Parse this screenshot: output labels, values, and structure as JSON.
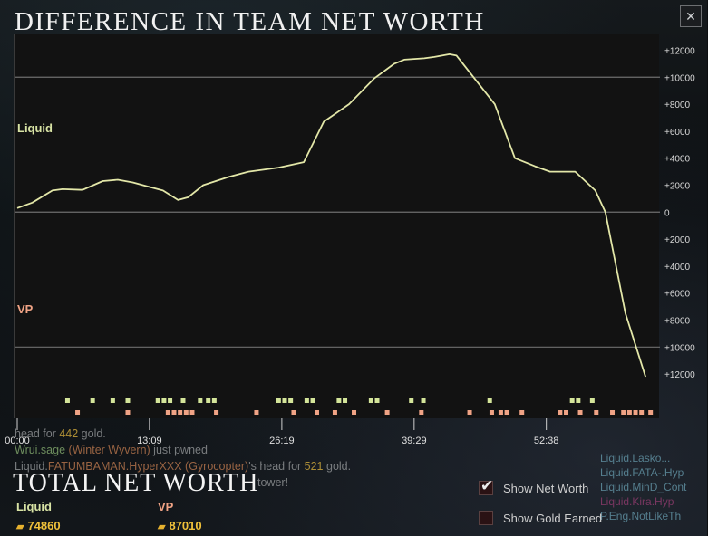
{
  "header": {
    "title": "DIFFERENCE IN TEAM NET WORTH",
    "close_icon": "close-icon"
  },
  "chart_data": {
    "type": "line",
    "title": "DIFFERENCE IN TEAM NET WORTH",
    "series": [
      {
        "name": "Liquid",
        "color": "#e3e7a8",
        "points": [
          [
            0.0,
            300
          ],
          [
            1.5,
            700
          ],
          [
            3.5,
            1600
          ],
          [
            4.5,
            1700
          ],
          [
            6.5,
            1650
          ],
          [
            8.5,
            2300
          ],
          [
            10,
            2400
          ],
          [
            11.5,
            2200
          ],
          [
            13,
            1900
          ],
          [
            14.5,
            1600
          ],
          [
            16,
            900
          ],
          [
            17,
            1100
          ],
          [
            18.5,
            2000
          ],
          [
            21,
            2600
          ],
          [
            23,
            3000
          ],
          [
            26,
            3300
          ],
          [
            28.5,
            3700
          ],
          [
            30.5,
            6700
          ],
          [
            33,
            8000
          ],
          [
            35.5,
            9900
          ],
          [
            37.5,
            11000
          ],
          [
            38.5,
            11300
          ],
          [
            40.5,
            11400
          ],
          [
            41.5,
            11500
          ],
          [
            43,
            11700
          ],
          [
            43.7,
            11600
          ],
          [
            47.5,
            8000
          ],
          [
            49.5,
            4000
          ],
          [
            51.5,
            3400
          ],
          [
            53,
            3000
          ],
          [
            55.5,
            3000
          ],
          [
            57.5,
            1600
          ],
          [
            58.5,
            0
          ],
          [
            60.5,
            -7500
          ],
          [
            62.5,
            -12200
          ]
        ]
      }
    ],
    "y_range": [
      -13000,
      12500
    ],
    "x_range": [
      0,
      63.3
    ],
    "y_ticks": [
      "+12000",
      "+10000",
      "+8000",
      "+6000",
      "+4000",
      "+2000",
      "0",
      "+2000",
      "+4000",
      "+6000",
      "+8000",
      "+10000",
      "+12000"
    ],
    "x_ticks": [
      "00:00",
      "13:09",
      "26:19",
      "39:29",
      "52:38"
    ],
    "gridlines": [
      10000,
      0,
      -10000
    ],
    "team_labels": {
      "top": "Liquid",
      "bottom": "VP"
    },
    "event_markers": {
      "liquid": [
        5,
        7.5,
        9.5,
        11,
        14,
        14.6,
        15.2,
        16.5,
        18.2,
        19,
        19.6,
        26,
        26.6,
        27.2,
        28.8,
        29.4,
        32,
        32.6,
        35.2,
        35.8,
        39.2,
        40.4,
        47,
        55.2,
        55.8,
        57.2
      ],
      "vp": [
        6,
        11,
        15,
        15.6,
        16.2,
        16.8,
        17.4,
        19.8,
        23.8,
        27.5,
        29.8,
        31.6,
        33.5,
        36.8,
        40.2,
        45,
        47.2,
        48.1,
        48.7,
        50.2,
        54,
        54.6,
        56,
        57.6,
        59.2,
        60.3,
        60.9,
        61.5,
        62.1,
        63
      ]
    }
  },
  "events_text": {
    "line1_a": "head for ",
    "line1_gold": "442",
    "line1_b": " gold.",
    "line2_name": "Wrui.sage",
    "line2_hero": "(Winter Wyvern)",
    "line2_rest": " just pwned",
    "line3_name": "Liquid.",
    "line3_mid": "FATUMBAMAN.HyperXXX",
    "line3_hero": "(Gyrocopter)",
    "line3_rest": "'s head for ",
    "line3_gold": "521",
    "line3_end": " gold.",
    "line4": "tower!"
  },
  "side_feed": {
    "items": [
      "Liquid.Lasko...",
      "Liquid.FATA-.Hyp",
      "Liquid.MinD_Cont",
      "Liquid.Kira.Hyp",
      "P.Eng.NotLikeTh"
    ]
  },
  "totals": {
    "title": "TOTAL NET WORTH",
    "teams": [
      {
        "name": "Liquid",
        "value": "74860",
        "color": "#d8e3a4"
      },
      {
        "name": "VP",
        "value": "87010",
        "color": "#f0a385"
      }
    ]
  },
  "options": {
    "show_net_worth": {
      "label": "Show Net Worth",
      "checked": true
    },
    "show_gold_earned": {
      "label": "Show Gold Earned",
      "checked": false
    }
  },
  "colors": {
    "line": "#e3e7a8",
    "liquid_marker": "#d4e59a",
    "vp_marker": "#f0a385",
    "gold": "#f0c13a"
  }
}
